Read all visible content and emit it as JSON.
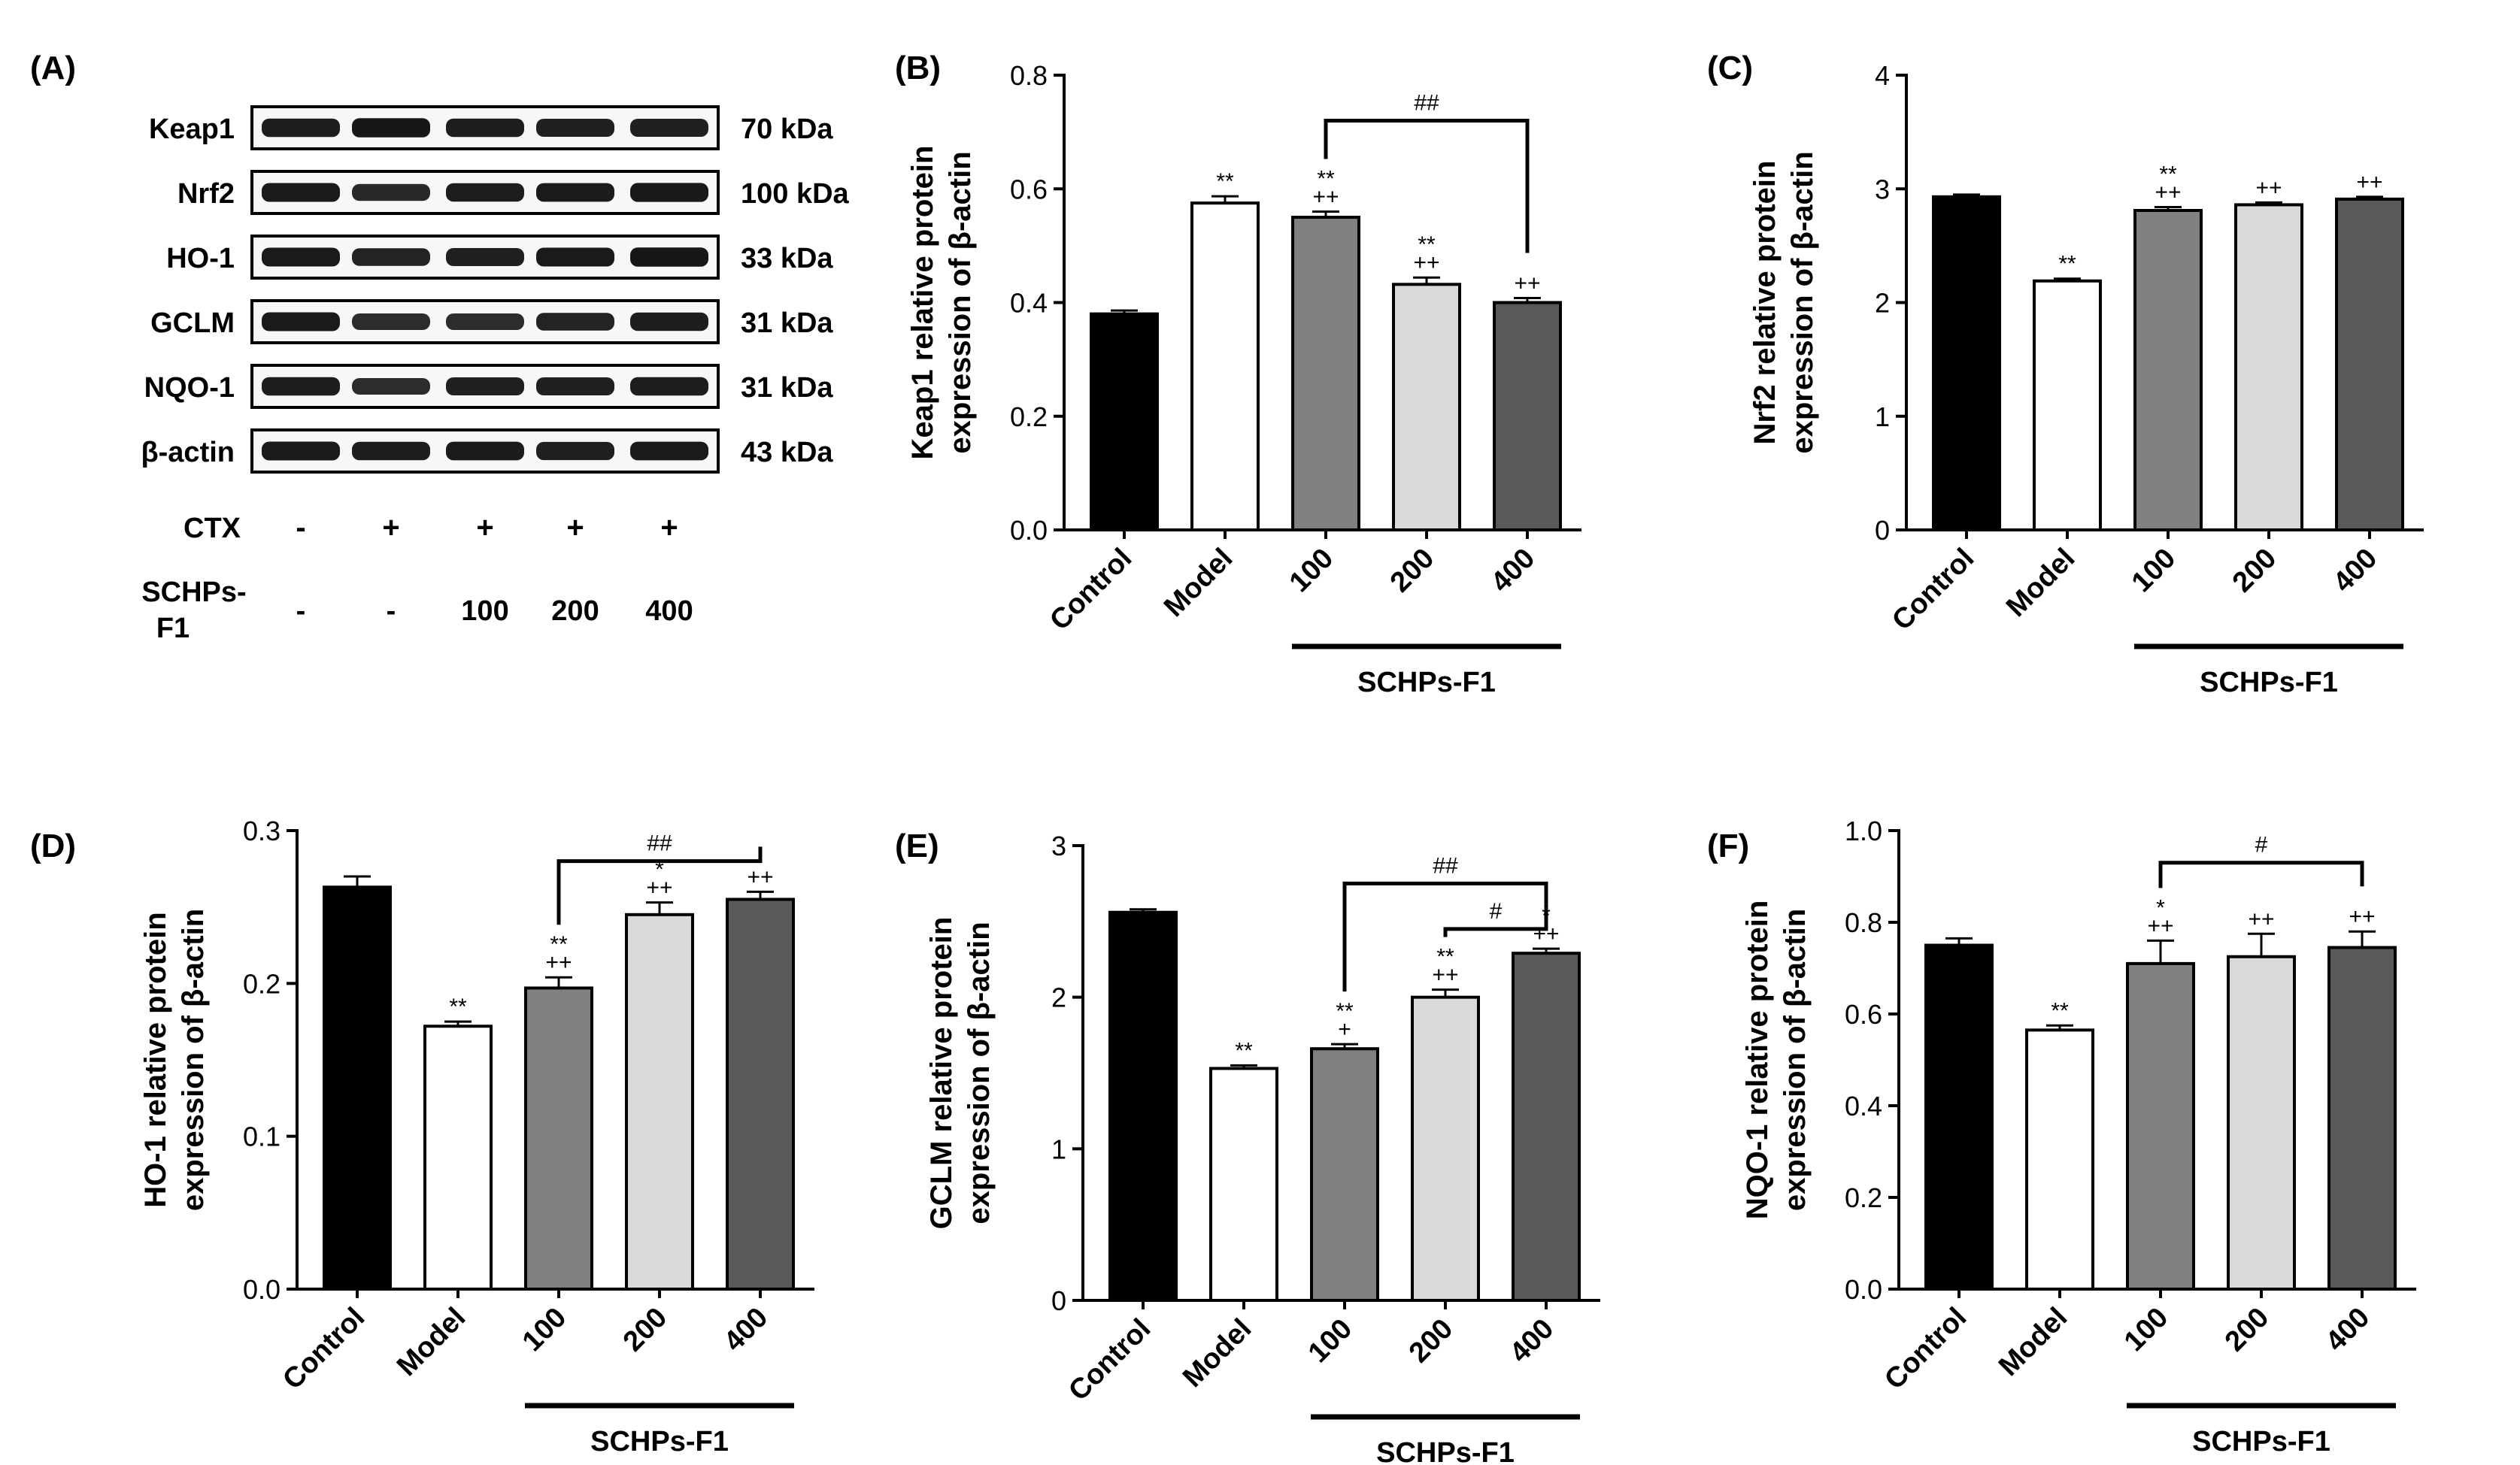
{
  "figure": {
    "group_label": "SCHPs-F1",
    "categories": [
      "Control",
      "Model",
      "100",
      "200",
      "400"
    ],
    "bar_colors": [
      "#000000",
      "#ffffff",
      "#808080",
      "#d9d9d9",
      "#595959"
    ]
  },
  "western_blot": {
    "panel_letter": "(A)",
    "proteins": [
      {
        "name": "Keap1",
        "kda": "70 kDa",
        "intensity": [
          0.85,
          0.95,
          0.85,
          0.8,
          0.8
        ]
      },
      {
        "name": "Nrf2",
        "kda": "100 kDa",
        "intensity": [
          0.9,
          0.65,
          0.85,
          0.88,
          0.92
        ]
      },
      {
        "name": "HO-1",
        "kda": "33 kDa",
        "intensity": [
          0.9,
          0.75,
          0.8,
          0.9,
          0.95
        ]
      },
      {
        "name": "GCLM",
        "kda": "31 kDa",
        "intensity": [
          0.9,
          0.6,
          0.6,
          0.75,
          0.85
        ]
      },
      {
        "name": "NQO-1",
        "kda": "31 kDa",
        "intensity": [
          0.85,
          0.6,
          0.8,
          0.8,
          0.85
        ]
      },
      {
        "name": "β-actin",
        "kda": "43 kDa",
        "intensity": [
          0.9,
          0.85,
          0.88,
          0.82,
          0.88
        ]
      }
    ],
    "cond1_label": "CTX",
    "cond1_values": [
      "-",
      "+",
      "+",
      "+",
      "+"
    ],
    "cond2_label_line1": "SCHPs-",
    "cond2_label_line2": "F1",
    "cond2_values": [
      "-",
      "-",
      "100",
      "200",
      "400"
    ]
  },
  "chart_data": [
    {
      "panel": "(B)",
      "type": "bar",
      "ylabel_line1": "Keap1 relative protein",
      "ylabel_line2": "expression of β-actin",
      "ylim": [
        0,
        0.8
      ],
      "yticks": [
        "0.0",
        "0.2",
        "0.4",
        "0.6",
        "0.8"
      ],
      "categories": [
        "Control",
        "Model",
        "100",
        "200",
        "400"
      ],
      "values": [
        0.38,
        0.575,
        0.55,
        0.432,
        0.4
      ],
      "errors": [
        0.006,
        0.012,
        0.01,
        0.012,
        0.008
      ],
      "annotations": [
        [],
        [
          "**"
        ],
        [
          "**",
          "++"
        ],
        [
          "**",
          "++"
        ],
        [
          "++"
        ]
      ],
      "brackets": [
        {
          "from": 2,
          "to": 4,
          "y": 0.72,
          "label": "##"
        }
      ]
    },
    {
      "panel": "(C)",
      "type": "bar",
      "ylabel_line1": "Nrf2 relative protein",
      "ylabel_line2": "expression of β-actin",
      "ylim": [
        0,
        4
      ],
      "yticks": [
        "0",
        "1",
        "2",
        "3",
        "4"
      ],
      "categories": [
        "Control",
        "Model",
        "100",
        "200",
        "400"
      ],
      "values": [
        2.93,
        2.19,
        2.81,
        2.86,
        2.91
      ],
      "errors": [
        0.02,
        0.02,
        0.03,
        0.02,
        0.02
      ],
      "annotations": [
        [],
        [
          "**"
        ],
        [
          "**",
          "++"
        ],
        [
          "++"
        ],
        [
          "++"
        ]
      ],
      "brackets": []
    },
    {
      "panel": "(D)",
      "type": "bar",
      "ylabel_line1": "HO-1 relative protein",
      "ylabel_line2": "expression of β-actin",
      "ylim": [
        0,
        0.3
      ],
      "yticks": [
        "0.0",
        "0.1",
        "0.2",
        "0.3"
      ],
      "categories": [
        "Control",
        "Model",
        "100",
        "200",
        "400"
      ],
      "values": [
        0.263,
        0.172,
        0.197,
        0.245,
        0.255
      ],
      "errors": [
        0.007,
        0.003,
        0.007,
        0.008,
        0.005
      ],
      "annotations": [
        [],
        [
          "**"
        ],
        [
          "**",
          "++"
        ],
        [
          "*",
          "++"
        ],
        [
          "++"
        ]
      ],
      "brackets": [
        {
          "from": 2,
          "to": 4,
          "y": 0.28,
          "label": "##"
        }
      ]
    },
    {
      "panel": "(E)",
      "type": "bar",
      "ylabel_line1": "GCLM relative protein",
      "ylabel_line2": "expression of β-actin",
      "ylim": [
        0,
        3
      ],
      "yticks": [
        "0",
        "1",
        "2",
        "3"
      ],
      "categories": [
        "Control",
        "Model",
        "100",
        "200",
        "400"
      ],
      "values": [
        2.56,
        1.53,
        1.66,
        2.0,
        2.29
      ],
      "errors": [
        0.02,
        0.02,
        0.03,
        0.05,
        0.03
      ],
      "annotations": [
        [],
        [
          "**"
        ],
        [
          "**",
          "+"
        ],
        [
          "**",
          "++"
        ],
        [
          "*",
          "++"
        ]
      ],
      "brackets": [
        {
          "from": 2,
          "to": 4,
          "y": 2.75,
          "label": "##"
        },
        {
          "from": 3,
          "to": 4,
          "y": 2.45,
          "label": "#"
        }
      ]
    },
    {
      "panel": "(F)",
      "type": "bar",
      "ylabel_line1": "NQO-1 relative protein",
      "ylabel_line2": "expression of β-actin",
      "ylim": [
        0,
        1.0
      ],
      "yticks": [
        "0.0",
        "0.2",
        "0.4",
        "0.6",
        "0.8",
        "1.0"
      ],
      "categories": [
        "Control",
        "Model",
        "100",
        "200",
        "400"
      ],
      "values": [
        0.75,
        0.565,
        0.71,
        0.725,
        0.745
      ],
      "errors": [
        0.015,
        0.01,
        0.05,
        0.05,
        0.035
      ],
      "annotations": [
        [],
        [
          "**"
        ],
        [
          "*",
          "++"
        ],
        [
          "++"
        ],
        [
          "++"
        ]
      ],
      "brackets": [
        {
          "from": 2,
          "to": 4,
          "y": 0.93,
          "label": "#"
        }
      ]
    }
  ]
}
